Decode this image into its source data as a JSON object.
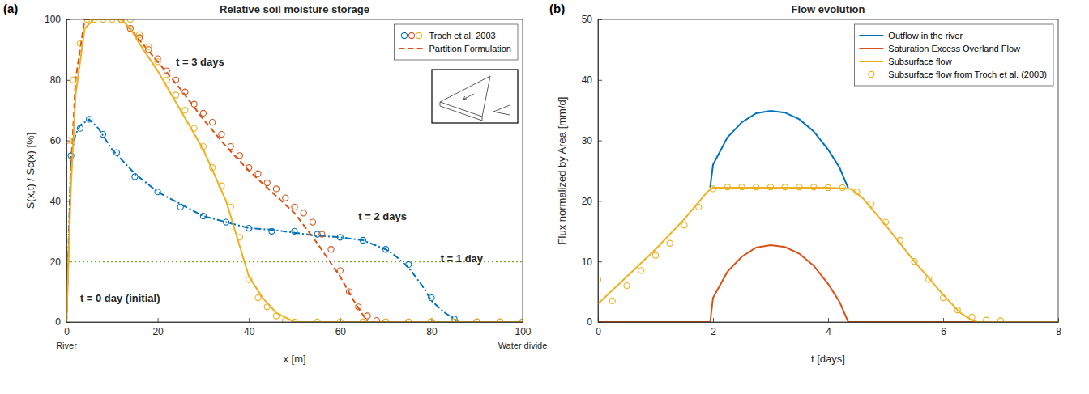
{
  "chart_data": [
    {
      "type": "line",
      "panel_label": "(a)",
      "title": "Relative soil moisture storage",
      "x_label": "x [m]",
      "y_label": "S(x,t) / Sc(x) [%]",
      "xlim": [
        0,
        100
      ],
      "xticks": [
        0,
        20,
        40,
        60,
        80,
        100
      ],
      "ylim": [
        0,
        100
      ],
      "yticks": [
        0,
        20,
        40,
        60,
        80,
        100
      ],
      "grid": false,
      "legend": "upper right",
      "annotations": [
        {
          "text": "t = 3 days",
          "x": 24,
          "y": 86
        },
        {
          "text": "t = 2 days",
          "x": 64,
          "y": 35
        },
        {
          "text": "t = 1 day",
          "x": 82,
          "y": 21
        },
        {
          "text": "t = 0 day (initial)",
          "x": 3,
          "y": 8
        },
        {
          "text": "River",
          "x": 0
        },
        {
          "text": "Water divide",
          "x": 100
        }
      ],
      "series": [
        {
          "type": "line",
          "color": "#77ac30",
          "line_style": "dotted",
          "x": [
            0,
            100
          ],
          "values": [
            20,
            20
          ]
        },
        {
          "name": "Troch et al. 2003",
          "type": "scatter",
          "marker": "circle",
          "color": "#0072bd",
          "x": [
            1,
            3,
            5,
            8,
            11,
            15,
            20,
            25,
            30,
            35,
            40,
            45,
            50,
            55,
            60,
            65,
            70,
            75,
            80,
            85,
            90,
            95,
            100
          ],
          "values": [
            55,
            64,
            67,
            62,
            56,
            48,
            43,
            38,
            35,
            33,
            31,
            30,
            30,
            29,
            28,
            27,
            24,
            19,
            8,
            1,
            0,
            0,
            0
          ]
        },
        {
          "name": "Partition Formulation",
          "type": "line",
          "color": "#0072bd",
          "line_style": "dashdot",
          "x": [
            0,
            1,
            2,
            3,
            5,
            7,
            10,
            15,
            20,
            25,
            30,
            35,
            40,
            45,
            50,
            55,
            60,
            65,
            70,
            72,
            75,
            78,
            80,
            83,
            86,
            100
          ],
          "values": [
            0,
            55,
            62,
            65,
            67,
            64,
            57,
            49,
            43,
            39,
            35,
            33,
            31,
            30.5,
            29.5,
            28.5,
            28,
            27,
            24,
            22,
            18,
            12,
            7,
            3,
            0,
            0
          ]
        },
        {
          "name": "Troch et al. 2003",
          "type": "scatter",
          "marker": "circle",
          "color": "#d95319",
          "x": [
            12,
            14,
            16,
            18,
            20,
            22,
            24,
            26,
            28,
            30,
            32,
            34,
            36,
            38,
            40,
            42,
            44,
            46,
            48,
            50,
            52,
            54,
            56,
            58,
            60,
            62,
            64,
            66,
            68,
            70,
            75,
            80,
            85,
            90,
            95,
            100
          ],
          "values": [
            100,
            97,
            94,
            90,
            87,
            83,
            80,
            76,
            72,
            69,
            66,
            62,
            58,
            55,
            51,
            49,
            46,
            44,
            41,
            38,
            36,
            33,
            29,
            24,
            17,
            10,
            5,
            2,
            0.5,
            0,
            0,
            0,
            0,
            0,
            0,
            0
          ]
        },
        {
          "name": "Partition Formulation",
          "type": "line",
          "color": "#d95319",
          "line_style": "dashed",
          "x": [
            0,
            1,
            2,
            4,
            10,
            12,
            15,
            20,
            25,
            30,
            35,
            40,
            45,
            50,
            55,
            60,
            63,
            66,
            100
          ],
          "values": [
            0,
            50,
            80,
            100,
            100,
            100,
            95,
            86,
            77,
            67,
            58,
            50,
            43,
            36,
            26,
            15,
            7,
            0,
            0
          ]
        },
        {
          "name": "Troch et al. 2003",
          "type": "scatter",
          "marker": "circle",
          "color": "#edb120",
          "x": [
            0.5,
            1.5,
            3,
            4.5,
            6,
            8,
            10,
            12,
            14,
            16,
            18,
            20,
            22,
            24,
            26,
            28,
            30,
            32,
            34,
            36,
            38,
            40,
            42,
            44,
            46,
            48,
            50,
            55,
            60,
            65,
            70,
            75,
            80,
            85,
            90,
            95,
            100
          ],
          "values": [
            60,
            80,
            92,
            100,
            100,
            100,
            100,
            100,
            100,
            95,
            91,
            86,
            80,
            75,
            70,
            64,
            58,
            51,
            45,
            38,
            28,
            14,
            8,
            5,
            2,
            0.5,
            0,
            0,
            0,
            0,
            0,
            0,
            0,
            0,
            0,
            0,
            0
          ]
        },
        {
          "name": "Partition Formulation",
          "type": "line",
          "color": "#edb120",
          "line_style": "solid",
          "x": [
            0,
            1,
            2,
            4,
            6,
            12,
            14,
            16,
            20,
            25,
            30,
            35,
            38,
            40,
            43,
            46,
            50,
            100
          ],
          "values": [
            0,
            45,
            75,
            97,
            100,
            100,
            97,
            92,
            83,
            70,
            57,
            40,
            25,
            15,
            8,
            3,
            0,
            0
          ]
        }
      ]
    },
    {
      "type": "line",
      "panel_label": "(b)",
      "title": "Flow evolution",
      "x_label": "t [days]",
      "y_label": "Flux normalized by Area [mm/d]",
      "xlim": [
        0,
        8
      ],
      "xticks": [
        0,
        2,
        4,
        6,
        8
      ],
      "ylim": [
        0,
        50
      ],
      "yticks": [
        0,
        10,
        20,
        30,
        40,
        50
      ],
      "grid": false,
      "legend": "upper right",
      "series": [
        {
          "name": "Outflow in the river",
          "type": "line",
          "color": "#0072bd",
          "line_style": "solid",
          "x": [
            1.95,
            2,
            2.25,
            2.5,
            2.75,
            3,
            3.25,
            3.5,
            3.75,
            4,
            4.2,
            4.35
          ],
          "values": [
            22.2,
            26,
            30.5,
            33,
            34.5,
            34.9,
            34.6,
            33.5,
            31.5,
            28.5,
            25.5,
            22.1
          ]
        },
        {
          "name": "Saturation Excess Overland Flow",
          "type": "line",
          "color": "#d95319",
          "line_style": "solid",
          "x": [
            0,
            1.95,
            2,
            2.25,
            2.5,
            2.75,
            3,
            3.25,
            3.5,
            3.75,
            4,
            4.2,
            4.35,
            8
          ],
          "values": [
            0,
            0,
            4,
            8.3,
            10.8,
            12.3,
            12.7,
            12.4,
            11.3,
            9.3,
            6.3,
            3.3,
            0,
            0
          ]
        },
        {
          "name": "Subsurface flow",
          "type": "line",
          "color": "#edb120",
          "line_style": "solid",
          "x": [
            0,
            0.5,
            1,
            1.5,
            1.9,
            2,
            3,
            4,
            4.4,
            4.6,
            5,
            5.5,
            6,
            6.3,
            6.5,
            6.6,
            8
          ],
          "values": [
            3,
            7.5,
            12,
            17,
            21.5,
            22.2,
            22.2,
            22.2,
            22,
            20.5,
            16,
            10,
            4.5,
            1.5,
            0.3,
            0,
            0
          ]
        },
        {
          "name": "Subsurface flow from Troch et al. (2003)",
          "type": "scatter",
          "marker": "circle",
          "color": "#edb120",
          "x": [
            0,
            0.25,
            0.5,
            0.75,
            1,
            1.25,
            1.5,
            1.75,
            2,
            2.25,
            2.5,
            2.75,
            3,
            3.25,
            3.5,
            3.75,
            4,
            4.25,
            4.5,
            4.75,
            5,
            5.25,
            5.5,
            5.75,
            6,
            6.25,
            6.5,
            6.75,
            7
          ],
          "values": [
            7,
            3.5,
            6,
            8.5,
            11,
            13,
            16,
            19,
            22,
            22.3,
            22.3,
            22.3,
            22.3,
            22.3,
            22.3,
            22.3,
            22.2,
            22.2,
            21.5,
            19.5,
            16.5,
            13.5,
            10,
            7,
            4,
            2,
            0.8,
            0.3,
            0.2
          ]
        }
      ]
    }
  ]
}
